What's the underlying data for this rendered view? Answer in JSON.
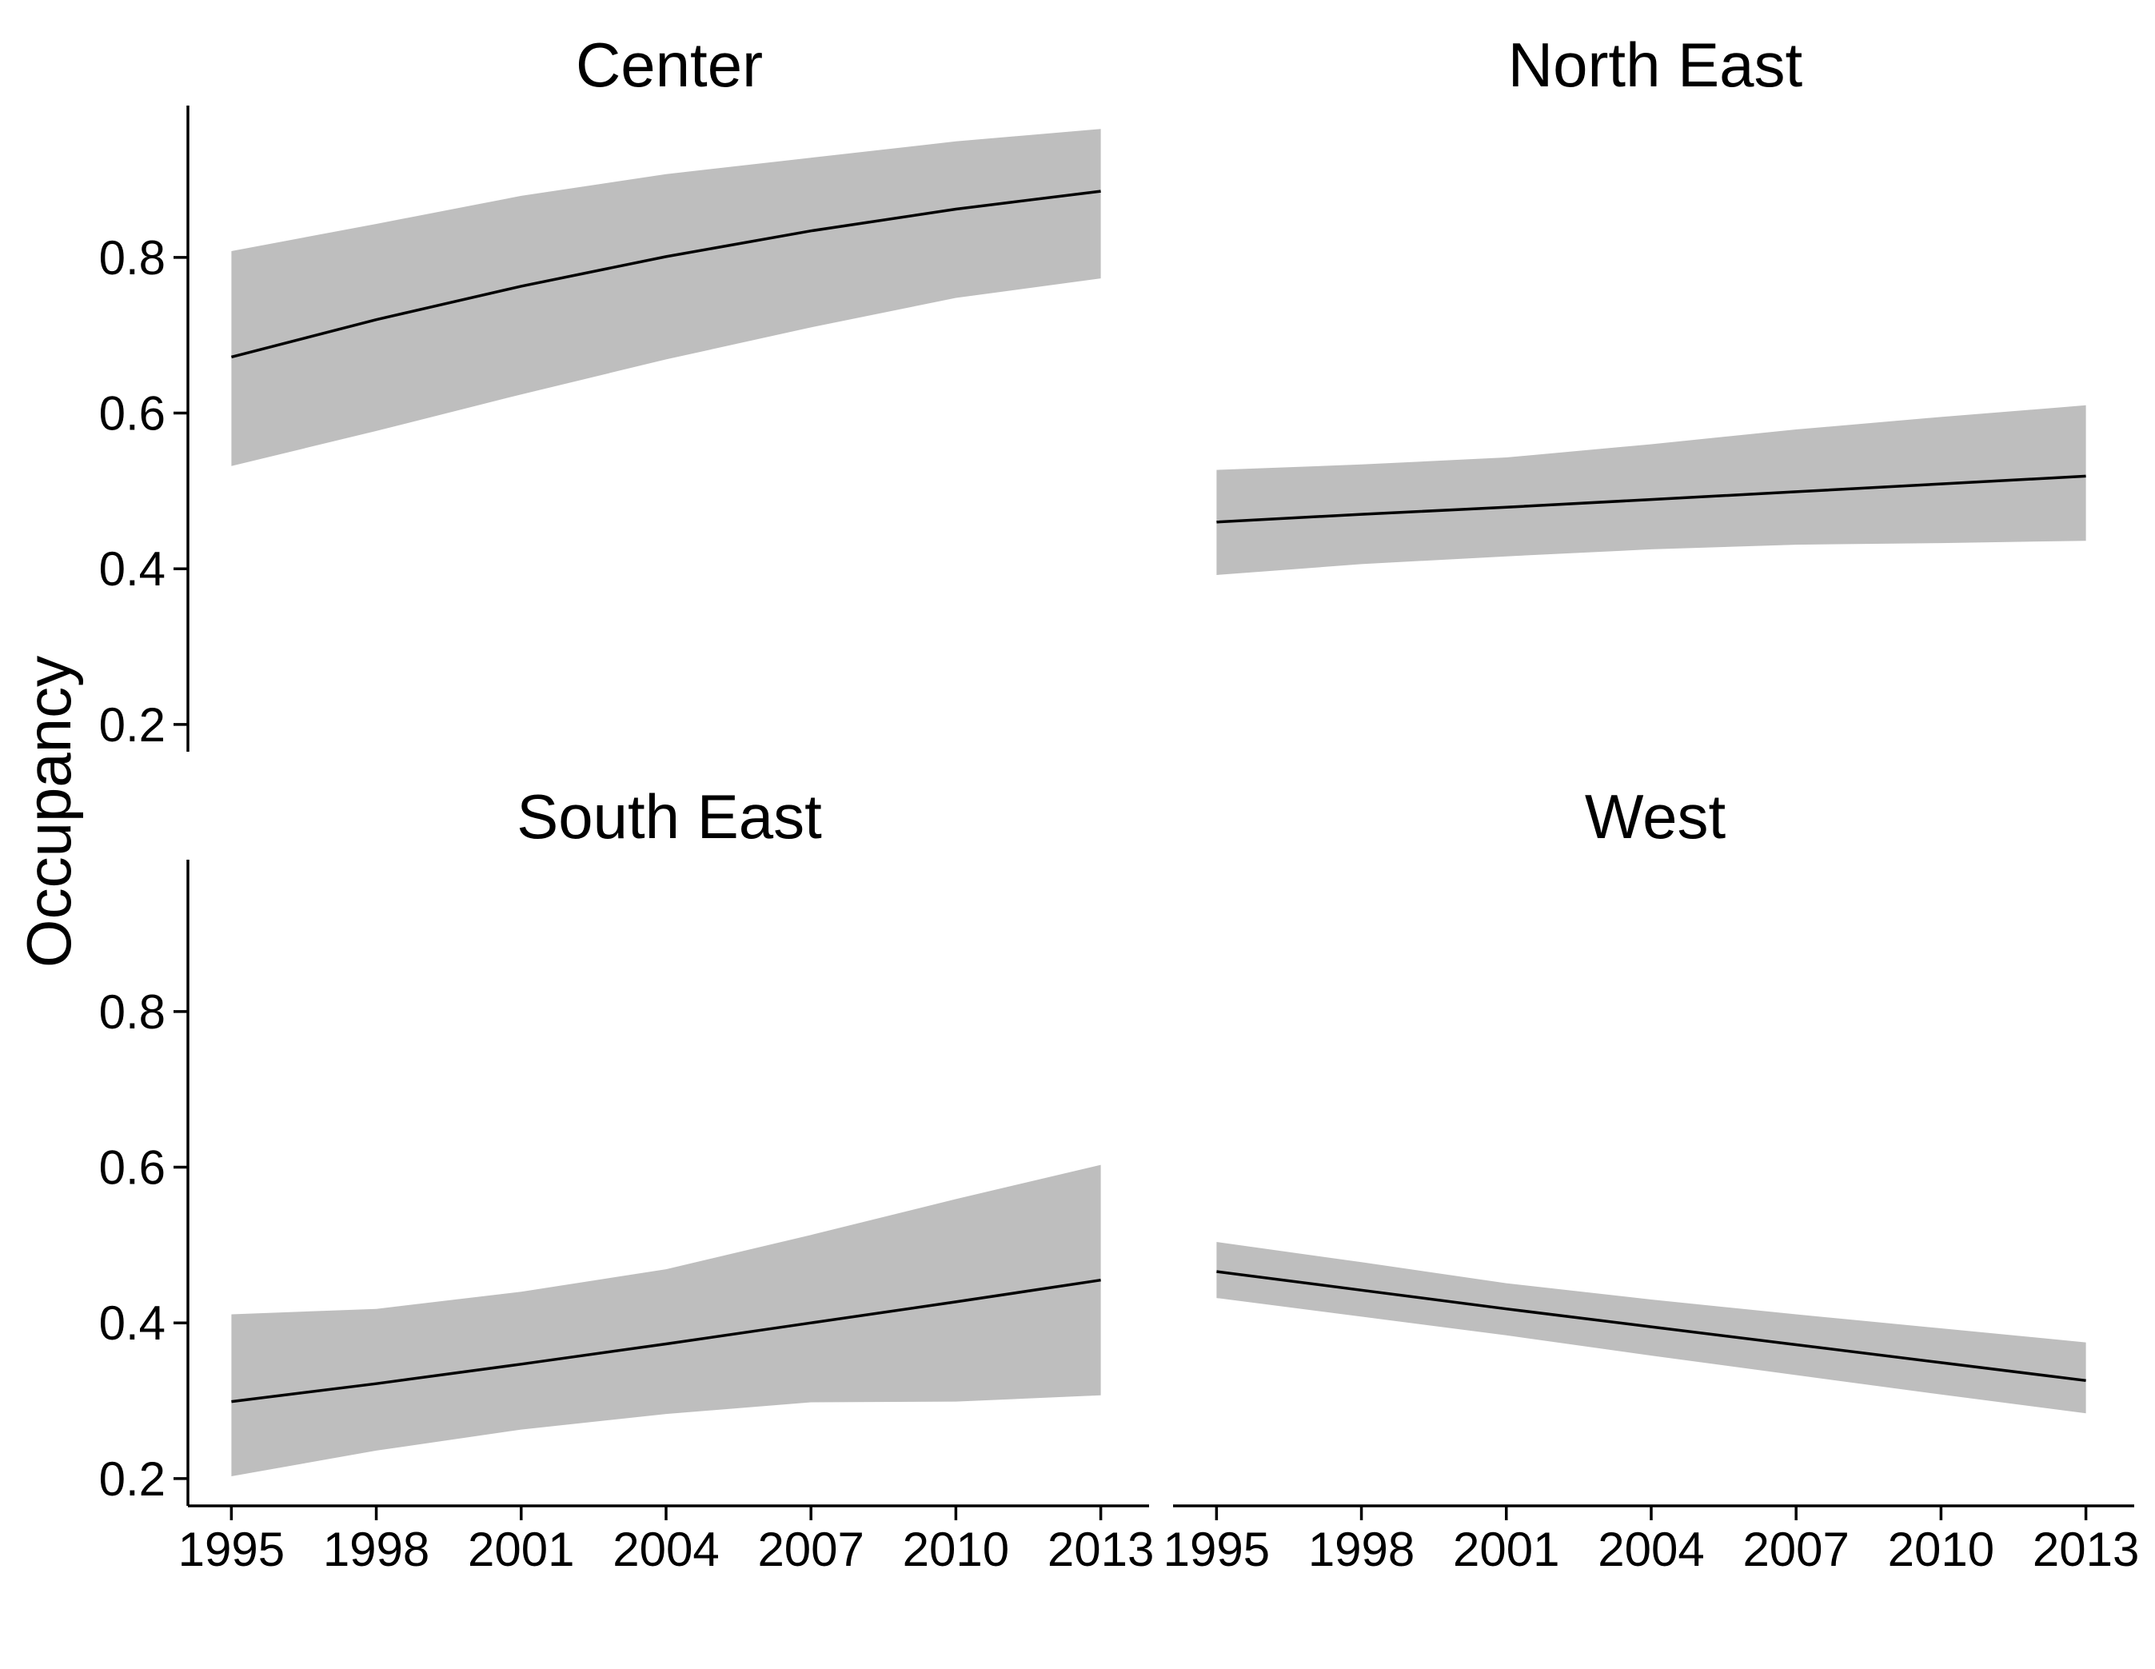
{
  "figure": {
    "ylabel": "Occupancy",
    "band_color": "#bebebe",
    "line_color": "#000000",
    "axis_color": "#000000",
    "background": "#ffffff"
  },
  "chart_data": [
    {
      "type": "area",
      "title": "Center",
      "x": [
        1995,
        1998,
        2001,
        2004,
        2007,
        2010,
        2013
      ],
      "y": [
        0.672,
        0.72,
        0.763,
        0.801,
        0.834,
        0.862,
        0.885
      ],
      "lower": [
        0.532,
        0.577,
        0.624,
        0.669,
        0.71,
        0.748,
        0.773
      ],
      "upper": [
        0.808,
        0.843,
        0.879,
        0.907,
        0.928,
        0.949,
        0.965
      ],
      "xlim": [
        1994.1,
        2014.0
      ],
      "ylim": [
        0.165,
        0.995
      ],
      "xticks": [
        "1995",
        "1998",
        "2001",
        "2004",
        "2007",
        "2010",
        "2013"
      ],
      "yticks": [
        "0.2",
        "0.4",
        "0.6",
        "0.8"
      ],
      "show_x_axis": false,
      "show_y_axis": true
    },
    {
      "type": "area",
      "title": "North East",
      "x": [
        1995,
        1998,
        2001,
        2004,
        2007,
        2010,
        2013
      ],
      "y": [
        0.46,
        0.47,
        0.479,
        0.489,
        0.499,
        0.509,
        0.519
      ],
      "lower": [
        0.392,
        0.406,
        0.416,
        0.425,
        0.431,
        0.433,
        0.436
      ],
      "upper": [
        0.527,
        0.534,
        0.543,
        0.56,
        0.579,
        0.595,
        0.61
      ],
      "xlim": [
        1994.1,
        2014.0
      ],
      "ylim": [
        0.165,
        0.995
      ],
      "xticks": [
        "1995",
        "1998",
        "2001",
        "2004",
        "2007",
        "2010",
        "2013"
      ],
      "yticks": [
        "0.2",
        "0.4",
        "0.6",
        "0.8"
      ],
      "show_x_axis": false,
      "show_y_axis": false
    },
    {
      "type": "area",
      "title": "South East",
      "x": [
        1995,
        1998,
        2001,
        2004,
        2007,
        2010,
        2013
      ],
      "y": [
        0.299,
        0.322,
        0.347,
        0.373,
        0.4,
        0.427,
        0.455
      ],
      "lower": [
        0.203,
        0.236,
        0.263,
        0.283,
        0.298,
        0.299,
        0.307
      ],
      "upper": [
        0.411,
        0.418,
        0.44,
        0.469,
        0.513,
        0.559,
        0.603
      ],
      "xlim": [
        1994.1,
        2014.0
      ],
      "ylim": [
        0.165,
        0.995
      ],
      "xticks": [
        "1995",
        "1998",
        "2001",
        "2004",
        "2007",
        "2010",
        "2013"
      ],
      "yticks": [
        "0.2",
        "0.4",
        "0.6",
        "0.8"
      ],
      "show_x_axis": true,
      "show_y_axis": true
    },
    {
      "type": "area",
      "title": "West",
      "x": [
        1995,
        1998,
        2001,
        2004,
        2007,
        2010,
        2013
      ],
      "y": [
        0.466,
        0.442,
        0.418,
        0.395,
        0.372,
        0.349,
        0.326
      ],
      "lower": [
        0.432,
        0.408,
        0.384,
        0.358,
        0.333,
        0.308,
        0.284
      ],
      "upper": [
        0.504,
        0.478,
        0.451,
        0.43,
        0.411,
        0.393,
        0.375
      ],
      "xlim": [
        1994.1,
        2014.0
      ],
      "ylim": [
        0.165,
        0.995
      ],
      "xticks": [
        "1995",
        "1998",
        "2001",
        "2004",
        "2007",
        "2010",
        "2013"
      ],
      "yticks": [
        "0.2",
        "0.4",
        "0.6",
        "0.8"
      ],
      "show_x_axis": true,
      "show_y_axis": false
    }
  ]
}
